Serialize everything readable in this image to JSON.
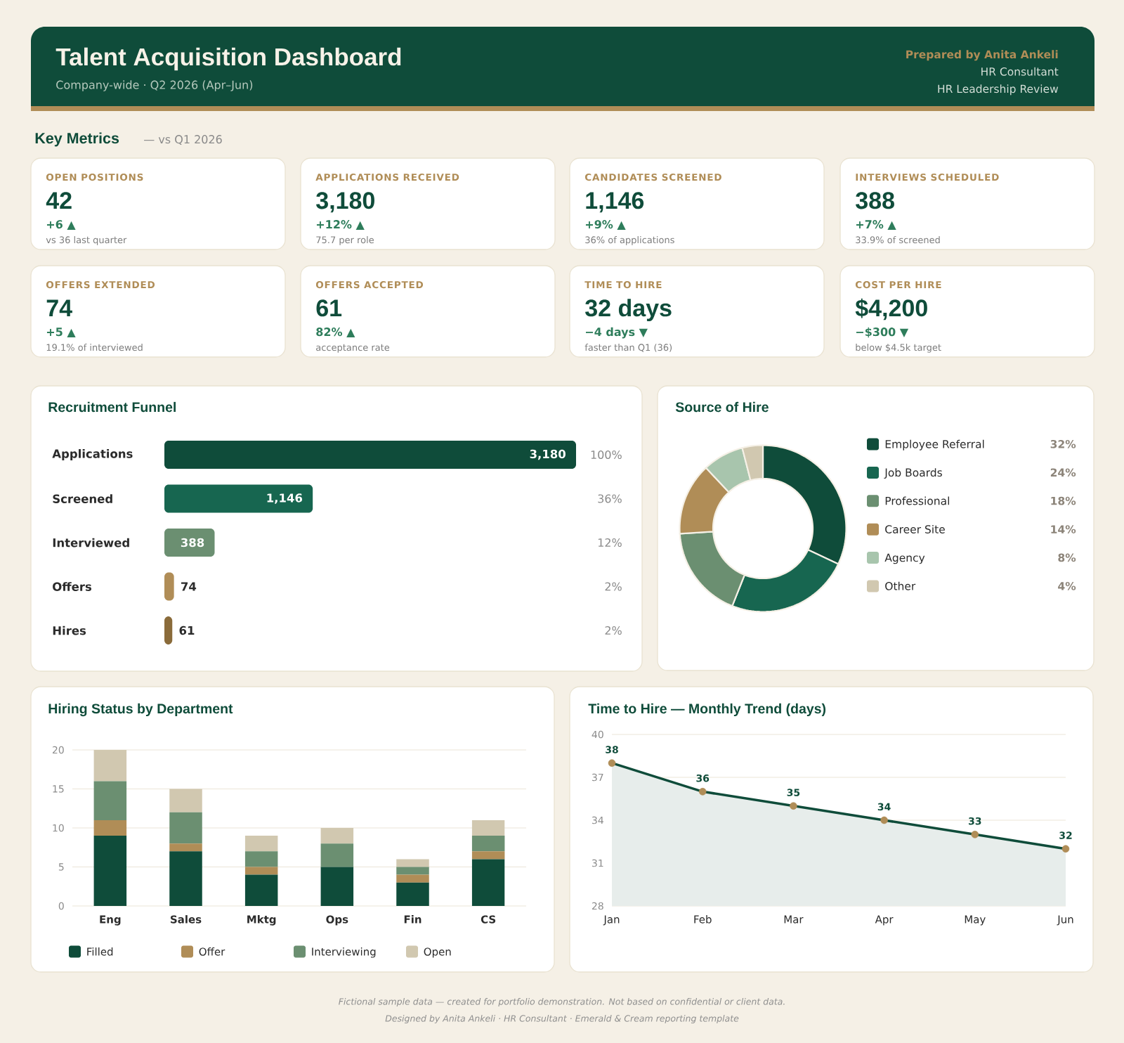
{
  "chart_data": [
    {
      "type": "other",
      "title": "Talent Acquisition Dashboard",
      "subtitle": "Company-wide · Q2 2026 (Apr–Jun)",
      "annotations": [
        "Prepared by Anita Ankeli",
        "HR Consultant",
        "HR Leadership Review",
        "Fictional sample data — created for portfolio demonstration. Not based on confidential or client data.",
        "Designed by Anita Ankeli · HR Consultant · Emerald & Cream reporting template"
      ]
    },
    {
      "type": "other",
      "title": "Key Metrics",
      "subtitle": "— vs Q1 2026",
      "annotations": [
        "OPEN POSITIONS",
        "42",
        "+6 ▲",
        "vs 36 last quarter",
        "APPLICATIONS RECEIVED",
        "3,180",
        "+12% ▲",
        "75.7 per role",
        "CANDIDATES SCREENED",
        "1,146",
        "+9% ▲",
        "36% of applications",
        "INTERVIEWS SCHEDULED",
        "388",
        "+7% ▲",
        "33.9% of screened",
        "OFFERS EXTENDED",
        "74",
        "+5 ▲",
        "19.1% of interviewed",
        "OFFERS ACCEPTED",
        "61",
        "82% ▲",
        "acceptance rate",
        "TIME TO HIRE",
        "32 days",
        "−4 days ▼",
        "faster than Q1 (36)",
        "COST PER HIRE",
        "$4,200",
        "−$300 ▼",
        "below $4.5k target"
      ]
    },
    {
      "type": "bar",
      "orientation": "horizontal",
      "title": "Recruitment Funnel",
      "categories": [
        "Applications",
        "Screened",
        "Interviewed",
        "Offers",
        "Hires"
      ],
      "values": [
        3180,
        1146,
        388,
        74,
        61
      ],
      "colors": [
        "#0f4c3a",
        "#176650",
        "#6b8f71",
        "#b08d57",
        "#8a6b3a"
      ],
      "value_labels": [
        "3,180",
        "1,146",
        "388",
        "74",
        "61"
      ],
      "annotations": [
        "100%",
        "36%",
        "12%",
        "2%",
        "2%"
      ],
      "xlim": [
        0,
        3180
      ],
      "tick_labels": "y"
    },
    {
      "type": "donut",
      "title": "Source of Hire",
      "categories": [
        "Employee Referral",
        "Job Boards",
        "Professional",
        "Career Site",
        "Agency",
        "Other"
      ],
      "values": [
        32,
        24,
        18,
        14,
        8,
        4
      ],
      "colors": [
        "#0f4c3a",
        "#176650",
        "#6b8f71",
        "#b08d57",
        "#a8c5ad",
        "#d1c8b0"
      ],
      "value_labels": [
        "32%",
        "24%",
        "18%",
        "14%",
        "8%",
        "4%"
      ],
      "legend": "right"
    },
    {
      "type": "bar",
      "stacked": true,
      "title": "Hiring Status by Department",
      "categories": [
        "Eng",
        "Sales",
        "Mktg",
        "Ops",
        "Fin",
        "CS"
      ],
      "series": [
        {
          "name": "Filled",
          "color": "#0f4c3a",
          "values": [
            9,
            7,
            4,
            5,
            3,
            6
          ]
        },
        {
          "name": "Offer",
          "color": "#b08d57",
          "values": [
            2,
            1,
            1,
            0,
            1,
            1
          ]
        },
        {
          "name": "Interviewing",
          "color": "#6b8f71",
          "values": [
            5,
            4,
            2,
            3,
            1,
            2
          ]
        },
        {
          "name": "Open",
          "color": "#d1c8b0",
          "values": [
            4,
            3,
            2,
            2,
            1,
            2
          ]
        }
      ],
      "ylim": [
        0,
        20
      ],
      "yticks": [
        0,
        5,
        10,
        15,
        20
      ],
      "grid": "y",
      "legend": "bottom"
    },
    {
      "type": "area",
      "title": "Time to Hire — Monthly Trend (days)",
      "categories": [
        "Jan",
        "Feb",
        "Mar",
        "Apr",
        "May",
        "Jun"
      ],
      "values": [
        38,
        36,
        35,
        34,
        33,
        32
      ],
      "color": "#0f4c3a",
      "colors": [
        "#b08d57",
        "#b08d57",
        "#b08d57",
        "#b08d57",
        "#b08d57",
        "#b08d57"
      ],
      "ylim": [
        28,
        40
      ],
      "yticks": [
        28,
        31,
        34,
        37,
        40
      ],
      "grid": "y",
      "marker": "circle",
      "data_labels": true
    }
  ]
}
